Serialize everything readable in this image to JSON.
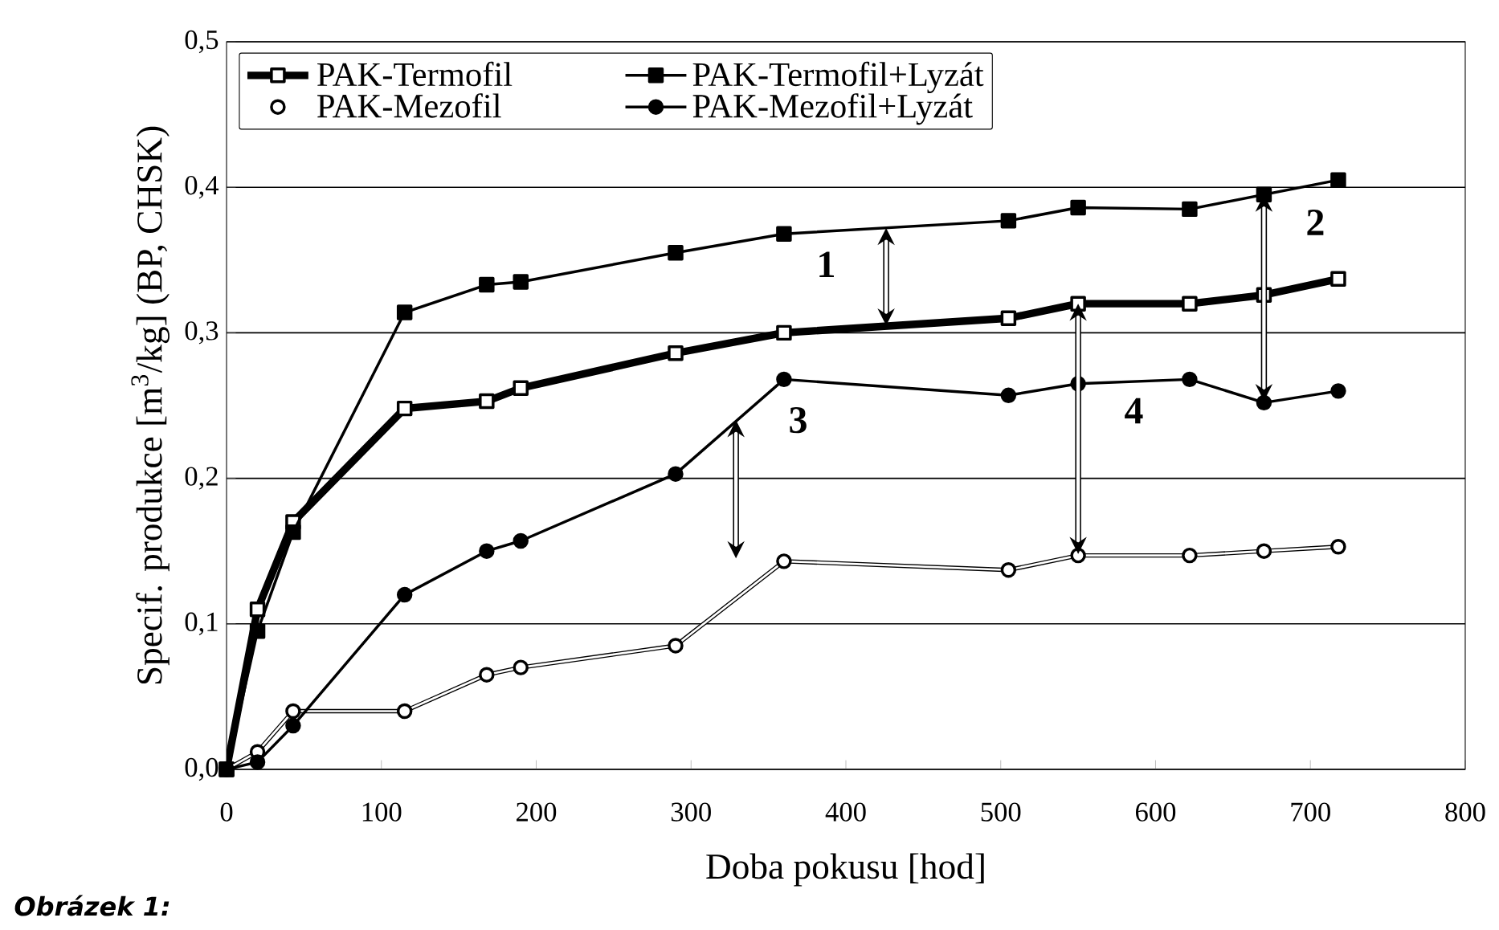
{
  "chart_data": {
    "type": "line",
    "xlabel": "Doba pokusu [hod]",
    "ylabel": "Specif. produkce [m$^{3}$/kg] (BP, CHSK)",
    "x": [
      0,
      20,
      43,
      115,
      168,
      190,
      290,
      360,
      505,
      550,
      622,
      670,
      718
    ],
    "series": [
      {
        "name": "PAK-Termofil",
        "color": "#000000",
        "marker": "square",
        "values": [
          0,
          0.11,
          0.17,
          0.248,
          0.253,
          0.262,
          0.286,
          0.3,
          0.31,
          0.32,
          0.32,
          0.326,
          0.337
        ]
      },
      {
        "name": "PAK-Termofil+Lyzát",
        "color": "#000000",
        "marker": "square",
        "values": [
          0,
          0.095,
          0.163,
          0.314,
          0.333,
          0.335,
          0.355,
          0.368,
          0.377,
          0.386,
          0.385,
          0.395,
          0.405
        ]
      },
      {
        "name": "PAK-Mezofil",
        "color": "#000000",
        "marker": "circle",
        "values": [
          0,
          0.012,
          0.04,
          0.04,
          0.065,
          0.07,
          0.085,
          0.143,
          0.137,
          0.147,
          0.147,
          0.15,
          0.153
        ]
      },
      {
        "name": "PAK-Mezofil+Lyzát",
        "color": "#000000",
        "marker": "circle",
        "values": [
          0,
          0.005,
          0.03,
          0.12,
          0.15,
          0.157,
          0.203,
          0.268,
          0.257,
          0.265,
          0.268,
          0.252,
          0.26
        ]
      }
    ],
    "xlim": [
      0,
      800
    ],
    "xticks": [
      0,
      100,
      200,
      300,
      400,
      500,
      600,
      700,
      800
    ],
    "ylim": [
      0,
      0.5
    ],
    "yticks": [
      {
        "value": 0,
        "label": "0,0"
      },
      {
        "value": 0.1,
        "label": "0,1"
      },
      {
        "value": 0.2,
        "label": "0,2"
      },
      {
        "value": 0.3,
        "label": "0,3"
      },
      {
        "value": 0.4,
        "label": "0,4"
      },
      {
        "value": 0.5,
        "label": "0,5"
      }
    ],
    "grid": "y",
    "legend": "top",
    "annotations": [
      {
        "text": "1",
        "x": 426,
        "y": 0.372
      },
      {
        "text": "2",
        "x": 670,
        "y": 0.395
      },
      {
        "text": "3",
        "x": 329,
        "y": 0.24
      },
      {
        "text": "4",
        "x": 550,
        "y": 0.32
      },
      "Obrázek 1:"
    ]
  }
}
